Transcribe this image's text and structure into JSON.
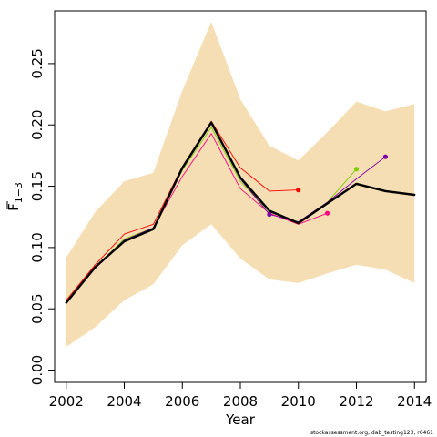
{
  "chart_data": {
    "type": "line",
    "xlabel": "Year",
    "ylabel": "F",
    "ylabel_subscript": "1−3",
    "xlim": [
      2001.6,
      2014.4
    ],
    "ylim": [
      -0.01,
      0.293
    ],
    "xticks": [
      2002,
      2004,
      2006,
      2008,
      2010,
      2012,
      2014
    ],
    "xtick_labels": [
      "2002",
      "2004",
      "2006",
      "2008",
      "2010",
      "2012",
      "2014"
    ],
    "yticks": [
      0.0,
      0.05,
      0.1,
      0.15,
      0.2,
      0.25
    ],
    "ytick_labels": [
      "0.00",
      "0.05",
      "0.10",
      "0.15",
      "0.20",
      "0.25"
    ],
    "grid": false,
    "band": {
      "color": "#f5deb3",
      "x": [
        2002,
        2003,
        2004,
        2005,
        2006,
        2007,
        2008,
        2009,
        2010,
        2011,
        2012,
        2013,
        2014
      ],
      "upper": [
        0.092,
        0.129,
        0.154,
        0.161,
        0.228,
        0.284,
        0.221,
        0.183,
        0.171,
        0.194,
        0.219,
        0.211,
        0.217
      ],
      "lower": [
        0.019,
        0.035,
        0.057,
        0.07,
        0.102,
        0.119,
        0.091,
        0.074,
        0.071,
        0.079,
        0.086,
        0.082,
        0.071
      ]
    },
    "series": [
      {
        "color": "#ff0000",
        "width": 0.9,
        "x": [
          2002,
          2003,
          2004,
          2005,
          2006,
          2007,
          2008,
          2009,
          2010
        ],
        "y": [
          0.057,
          0.086,
          0.111,
          0.119,
          0.166,
          0.203,
          0.165,
          0.146,
          0.147
        ]
      },
      {
        "color": "#ff0080",
        "width": 0.9,
        "x": [
          2002,
          2003,
          2004,
          2005,
          2006,
          2007,
          2008,
          2009,
          2010,
          2011
        ],
        "y": [
          0.056,
          0.083,
          0.106,
          0.116,
          0.158,
          0.193,
          0.148,
          0.128,
          0.119,
          0.128
        ]
      },
      {
        "color": "#7ccd00",
        "width": 0.9,
        "x": [
          2002,
          2003,
          2004,
          2005,
          2006,
          2007,
          2008,
          2009,
          2010,
          2011,
          2012
        ],
        "y": [
          0.056,
          0.084,
          0.107,
          0.116,
          0.163,
          0.198,
          0.154,
          0.129,
          0.121,
          0.137,
          0.164
        ]
      },
      {
        "color": "#7f00a6",
        "width": 0.9,
        "x": [
          2002,
          2003,
          2004,
          2005,
          2006,
          2007,
          2008,
          2009,
          2010,
          2011,
          2012,
          2013
        ],
        "y": [
          0.055,
          0.084,
          0.106,
          0.116,
          0.164,
          0.201,
          0.156,
          0.127,
          0.121,
          0.137,
          0.156,
          0.174
        ]
      },
      {
        "color": "#000000",
        "width": 2.4,
        "x": [
          2002,
          2003,
          2004,
          2005,
          2006,
          2007,
          2008,
          2009,
          2010,
          2011,
          2012,
          2013,
          2014
        ],
        "y": [
          0.055,
          0.084,
          0.105,
          0.115,
          0.165,
          0.202,
          0.157,
          0.13,
          0.12,
          0.136,
          0.152,
          0.146,
          0.143
        ]
      }
    ],
    "endpoints": [
      {
        "color": "#ff0000",
        "x": 2010,
        "y": 0.147
      },
      {
        "color": "#ff0080",
        "x": 2011,
        "y": 0.128
      },
      {
        "color": "#7ccd00",
        "x": 2012,
        "y": 0.164
      },
      {
        "color": "#7f00a6",
        "x": 2013,
        "y": 0.174
      },
      {
        "color": "#7f00a6",
        "x": 2009,
        "y": 0.127
      }
    ],
    "annotation": "stockassessment.org, dab_testing123, r6461"
  }
}
